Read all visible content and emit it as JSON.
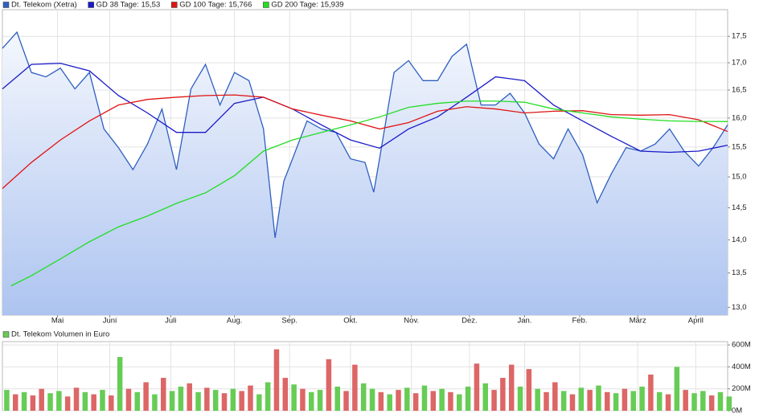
{
  "chart_data": [
    {
      "type": "line",
      "log_y": true,
      "grid": true,
      "xlim": [
        0,
        250
      ],
      "ylim": [
        12.89,
        18.02
      ],
      "xticks": [
        {
          "value": 19,
          "label": "Mai"
        },
        {
          "value": 37,
          "label": "Juni"
        },
        {
          "value": 58,
          "label": "Juli"
        },
        {
          "value": 80,
          "label": "Aug."
        },
        {
          "value": 99,
          "label": "Sep."
        },
        {
          "value": 120,
          "label": "Okt."
        },
        {
          "value": 141,
          "label": "Nov."
        },
        {
          "value": 161,
          "label": "Dez."
        },
        {
          "value": 180,
          "label": "Jan."
        },
        {
          "value": 199,
          "label": "Feb."
        },
        {
          "value": 219,
          "label": "März"
        },
        {
          "value": 239,
          "label": "April"
        }
      ],
      "yticks": [
        {
          "value": 13,
          "label": "13,0"
        },
        {
          "value": 13.5,
          "label": "13,5"
        },
        {
          "value": 14,
          "label": "14,0"
        },
        {
          "value": 14.5,
          "label": "14,5"
        },
        {
          "value": 15,
          "label": "15,0"
        },
        {
          "value": 15.5,
          "label": "15,5"
        },
        {
          "value": 16,
          "label": "16,0"
        },
        {
          "value": 16.5,
          "label": "16,5"
        },
        {
          "value": 17,
          "label": "17,0"
        },
        {
          "value": 17.5,
          "label": "17,5"
        }
      ],
      "series": [
        {
          "name": "Dt. Telekom (Xetra)",
          "color": "#2f5fbf",
          "area": true,
          "x": [
            0,
            5,
            10,
            15,
            20,
            25,
            30,
            35,
            40,
            45,
            50,
            55,
            60,
            65,
            70,
            75,
            80,
            85,
            90,
            94,
            97,
            100,
            105,
            110,
            115,
            120,
            125,
            128,
            130,
            135,
            140,
            145,
            150,
            155,
            160,
            165,
            170,
            175,
            180,
            185,
            190,
            195,
            200,
            205,
            210,
            215,
            220,
            225,
            230,
            235,
            240,
            245,
            250
          ],
          "values": [
            17.27,
            17.58,
            16.82,
            16.74,
            16.9,
            16.52,
            16.82,
            15.81,
            15.49,
            15.12,
            15.55,
            16.16,
            15.12,
            16.52,
            16.97,
            16.23,
            16.82,
            16.67,
            15.81,
            14.03,
            14.93,
            15.3,
            15.95,
            15.81,
            15.75,
            15.3,
            15.24,
            14.75,
            15.3,
            16.82,
            17.04,
            16.67,
            16.67,
            17.12,
            17.35,
            16.23,
            16.23,
            16.44,
            16.09,
            15.55,
            15.3,
            15.81,
            15.37,
            14.58,
            15.06,
            15.49,
            15.43,
            15.55,
            15.81,
            15.43,
            15.18,
            15.49,
            15.88
          ]
        },
        {
          "name": "GD 38 Tage: 15,53",
          "color": "#1a1ac8",
          "x": [
            0,
            10,
            20,
            30,
            40,
            50,
            60,
            70,
            80,
            90,
            100,
            110,
            120,
            130,
            140,
            150,
            160,
            170,
            180,
            190,
            200,
            210,
            220,
            230,
            240,
            250
          ],
          "values": [
            16.52,
            16.97,
            16.99,
            16.85,
            16.4,
            16.09,
            15.75,
            15.75,
            16.26,
            16.37,
            16.16,
            15.88,
            15.62,
            15.48,
            15.81,
            16.02,
            16.37,
            16.74,
            16.67,
            16.23,
            15.95,
            15.68,
            15.43,
            15.41,
            15.43,
            15.53
          ]
        },
        {
          "name": "GD 100 Tage: 15,766",
          "color": "#e01414",
          "x": [
            0,
            10,
            20,
            30,
            40,
            50,
            60,
            70,
            80,
            90,
            100,
            110,
            120,
            130,
            140,
            150,
            160,
            170,
            180,
            190,
            200,
            210,
            220,
            230,
            240,
            250
          ],
          "values": [
            14.81,
            15.24,
            15.62,
            15.95,
            16.23,
            16.33,
            16.37,
            16.4,
            16.41,
            16.37,
            16.16,
            16.05,
            15.95,
            15.81,
            15.92,
            16.12,
            16.2,
            16.16,
            16.09,
            16.12,
            16.13,
            16.06,
            16.05,
            16.06,
            15.97,
            15.766
          ]
        },
        {
          "name": "GD 200 Tage: 15,939",
          "color": "#22dd22",
          "x": [
            3,
            10,
            20,
            30,
            40,
            50,
            60,
            70,
            80,
            90,
            100,
            110,
            120,
            130,
            140,
            150,
            160,
            170,
            180,
            190,
            200,
            210,
            220,
            230,
            240,
            250
          ],
          "values": [
            13.31,
            13.46,
            13.71,
            13.97,
            14.2,
            14.37,
            14.57,
            14.74,
            15.02,
            15.43,
            15.62,
            15.75,
            15.88,
            16.02,
            16.19,
            16.26,
            16.3,
            16.3,
            16.28,
            16.16,
            16.09,
            16.02,
            15.98,
            15.95,
            15.94,
            15.939
          ]
        }
      ]
    },
    {
      "type": "bar",
      "grid": true,
      "xlim": [
        0,
        250
      ],
      "ylim": [
        0,
        630
      ],
      "yticks": [
        {
          "value": 0,
          "label": "0M"
        },
        {
          "value": 200,
          "label": "200M"
        },
        {
          "value": 400,
          "label": "400M"
        },
        {
          "value": 600,
          "label": "600M"
        }
      ],
      "series": [
        {
          "name": "Dt. Telekom Volumen in Euro",
          "color": "#66cc55",
          "x": [
            0,
            3,
            6,
            9,
            12,
            15,
            18,
            21,
            24,
            27,
            30,
            33,
            36,
            39,
            42,
            45,
            48,
            51,
            54,
            57,
            60,
            63,
            66,
            69,
            72,
            75,
            78,
            81,
            84,
            87,
            90,
            93,
            96,
            99,
            102,
            105,
            108,
            111,
            114,
            117,
            120,
            123,
            126,
            129,
            132,
            135,
            138,
            141,
            144,
            147,
            150,
            153,
            156,
            159,
            162,
            165,
            168,
            171,
            174,
            177,
            180,
            183,
            186,
            189,
            192,
            195,
            198,
            201,
            204,
            207,
            210,
            213,
            216,
            219,
            222,
            225,
            228,
            231,
            234,
            237,
            240,
            243,
            246,
            249
          ],
          "values": [
            190,
            150,
            170,
            140,
            200,
            160,
            180,
            130,
            210,
            170,
            150,
            190,
            140,
            490,
            200,
            170,
            260,
            150,
            300,
            180,
            220,
            250,
            170,
            210,
            190,
            160,
            200,
            180,
            230,
            150,
            260,
            560,
            300,
            240,
            200,
            170,
            190,
            470,
            220,
            180,
            420,
            250,
            200,
            170,
            150,
            190,
            210,
            160,
            230,
            180,
            200,
            170,
            150,
            220,
            430,
            250,
            190,
            300,
            420,
            220,
            380,
            200,
            170,
            260,
            180,
            150,
            210,
            190,
            230,
            170,
            160,
            200,
            180,
            220,
            330,
            170,
            150,
            400,
            190,
            160,
            180,
            140,
            170,
            130
          ],
          "colors": [
            "#66cc55",
            "#dd6666",
            "#66cc55",
            "#dd6666",
            "#dd6666",
            "#66cc55",
            "#66cc55",
            "#dd6666",
            "#dd6666",
            "#66cc55",
            "#dd6666",
            "#66cc55",
            "#dd6666",
            "#66cc55",
            "#dd6666",
            "#66cc55",
            "#dd6666",
            "#66cc55",
            "#dd6666",
            "#66cc55",
            "#66cc55",
            "#dd6666",
            "#66cc55",
            "#dd6666",
            "#66cc55",
            "#dd6666",
            "#66cc55",
            "#dd6666",
            "#dd6666",
            "#66cc55",
            "#66cc55",
            "#dd6666",
            "#dd6666",
            "#66cc55",
            "#dd6666",
            "#66cc55",
            "#66cc55",
            "#dd6666",
            "#66cc55",
            "#dd6666",
            "#dd6666",
            "#66cc55",
            "#66cc55",
            "#dd6666",
            "#66cc55",
            "#dd6666",
            "#66cc55",
            "#dd6666",
            "#66cc55",
            "#dd6666",
            "#66cc55",
            "#dd6666",
            "#66cc55",
            "#66cc55",
            "#dd6666",
            "#66cc55",
            "#dd6666",
            "#dd6666",
            "#dd6666",
            "#66cc55",
            "#dd6666",
            "#66cc55",
            "#dd6666",
            "#dd6666",
            "#66cc55",
            "#dd6666",
            "#66cc55",
            "#dd6666",
            "#66cc55",
            "#dd6666",
            "#66cc55",
            "#dd6666",
            "#66cc55",
            "#66cc55",
            "#dd6666",
            "#66cc55",
            "#dd6666",
            "#66cc55",
            "#dd6666",
            "#66cc55",
            "#66cc55",
            "#dd6666",
            "#66cc55",
            "#66cc55"
          ]
        }
      ]
    }
  ]
}
